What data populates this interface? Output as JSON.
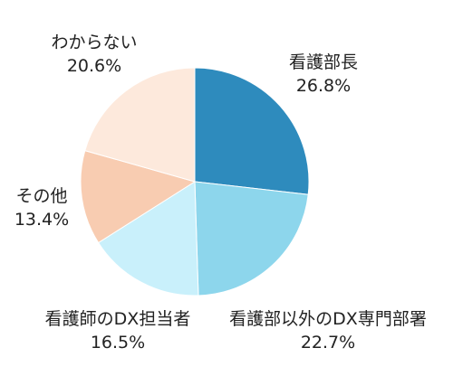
{
  "chart_data": {
    "type": "pie",
    "start": "12 o'clock",
    "direction": "clockwise",
    "slices": [
      {
        "label": "看護部長",
        "value": 26.8,
        "value_label": "26.8%",
        "color": "#2e8bbd"
      },
      {
        "label": "看護部以外のDX専門部署",
        "value": 22.7,
        "value_label": "22.7%",
        "color": "#8dd6ec"
      },
      {
        "label": "看護師のDX担当者",
        "value": 16.5,
        "value_label": "16.5%",
        "color": "#c9f0fb"
      },
      {
        "label": "その他",
        "value": 13.4,
        "value_label": "13.4%",
        "color": "#f8ccb1"
      },
      {
        "label": "わからない",
        "value": 20.6,
        "value_label": "20.6%",
        "color": "#fde9dc"
      }
    ]
  }
}
